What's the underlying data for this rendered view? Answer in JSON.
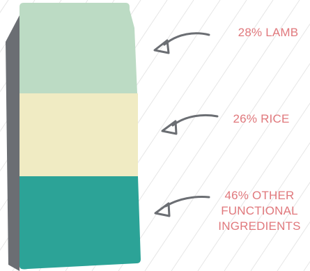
{
  "segments": [
    {
      "label": "28% LAMB",
      "percent": 28,
      "color": "#bcdbc4"
    },
    {
      "label": "26% RICE",
      "percent": 26,
      "color": "#f0ebc3"
    },
    {
      "label": "46% OTHER FUNCTIONAL INGREDIENTS",
      "label_lines": [
        "46% OTHER",
        "FUNCTIONAL",
        "INGREDIENTS"
      ],
      "percent": 46,
      "color": "#2ca397"
    }
  ],
  "colors": {
    "bag_side": "#6b6e73",
    "label_text": "#e0787c",
    "arrow": "#6b6e73",
    "background_lines": "#e6e6e6"
  }
}
